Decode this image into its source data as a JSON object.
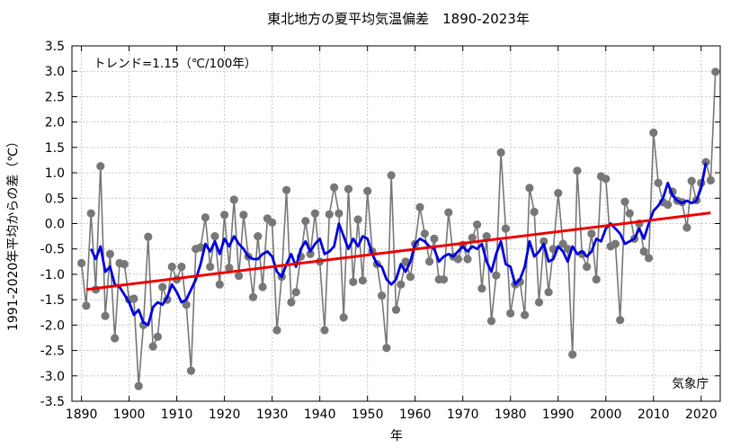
{
  "chart_data": {
    "type": "line",
    "title": "東北地方の夏平均気温偏差　1890-2023年",
    "ylabel": "1991-2020年平均からの差（℃）",
    "xlabel": "年",
    "trend_label": "トレンド=1.15（℃/100年）",
    "credit": "気象庁",
    "xlim": [
      1888,
      2024
    ],
    "ylim": [
      -3.5,
      3.5
    ],
    "x_ticks": [
      1890,
      1900,
      1910,
      1920,
      1930,
      1940,
      1950,
      1960,
      1970,
      1980,
      1990,
      2000,
      2010,
      2020
    ],
    "x_tick_labels": [
      "1890",
      "1900",
      "1910",
      "1920",
      "1930",
      "1940",
      "1950",
      "1960",
      "1970",
      "1980",
      "1990",
      "2000",
      "2010",
      "2020"
    ],
    "y_ticks": [
      3.5,
      3.0,
      2.5,
      2.0,
      1.5,
      1.0,
      0.5,
      0.0,
      -0.5,
      -1.0,
      -1.5,
      -2.0,
      -2.5,
      -3.0,
      -3.5
    ],
    "y_tick_labels": [
      "3.5",
      "3.0",
      "2.5",
      "2.0",
      "1.5",
      "1.0",
      "0.5",
      "0.0",
      "-0.5",
      "-1.0",
      "-1.5",
      "-2.0",
      "-2.5",
      "-3.0",
      "-3.5"
    ],
    "grid": true,
    "colors": {
      "annual": "#777777",
      "moving_average": "#0000dd",
      "trend": "#ee0000"
    },
    "annual": {
      "x": [
        1890,
        1891,
        1892,
        1893,
        1894,
        1895,
        1896,
        1897,
        1898,
        1899,
        1900,
        1901,
        1902,
        1903,
        1904,
        1905,
        1906,
        1907,
        1908,
        1909,
        1910,
        1911,
        1912,
        1913,
        1914,
        1915,
        1916,
        1917,
        1918,
        1919,
        1920,
        1921,
        1922,
        1923,
        1924,
        1925,
        1926,
        1927,
        1928,
        1929,
        1930,
        1931,
        1932,
        1933,
        1934,
        1935,
        1936,
        1937,
        1938,
        1939,
        1940,
        1941,
        1942,
        1943,
        1944,
        1945,
        1946,
        1947,
        1948,
        1949,
        1950,
        1951,
        1952,
        1953,
        1954,
        1955,
        1956,
        1957,
        1958,
        1959,
        1960,
        1961,
        1962,
        1963,
        1964,
        1965,
        1966,
        1967,
        1968,
        1969,
        1970,
        1971,
        1972,
        1973,
        1974,
        1975,
        1976,
        1977,
        1978,
        1979,
        1980,
        1981,
        1982,
        1983,
        1984,
        1985,
        1986,
        1987,
        1988,
        1989,
        1990,
        1991,
        1992,
        1993,
        1994,
        1995,
        1996,
        1997,
        1998,
        1999,
        2000,
        2001,
        2002,
        2003,
        2004,
        2005,
        2006,
        2007,
        2008,
        2009,
        2010,
        2011,
        2012,
        2013,
        2014,
        2015,
        2016,
        2017,
        2018,
        2019,
        2020,
        2021,
        2022,
        2023
      ],
      "y": [
        -0.78,
        -1.62,
        0.2,
        -1.3,
        1.13,
        -1.82,
        -0.6,
        -2.26,
        -0.78,
        -0.8,
        -1.5,
        -1.48,
        -3.2,
        -2.0,
        -0.26,
        -2.42,
        -2.23,
        -1.25,
        -1.5,
        -0.85,
        -1.1,
        -0.85,
        -1.6,
        -2.9,
        -0.5,
        -0.47,
        0.12,
        -0.85,
        -0.25,
        -1.2,
        0.17,
        -0.87,
        0.47,
        -1.03,
        0.17,
        -0.65,
        -1.45,
        -0.25,
        -1.25,
        0.1,
        0.02,
        -2.1,
        -1.05,
        0.66,
        -1.55,
        -1.35,
        -0.65,
        0.05,
        -0.6,
        0.2,
        -0.75,
        -2.1,
        0.18,
        0.71,
        0.2,
        -1.85,
        0.68,
        -1.15,
        0.08,
        -1.12,
        0.64,
        -0.55,
        -0.8,
        -1.42,
        -2.45,
        0.95,
        -1.7,
        -1.2,
        -0.75,
        -1.05,
        -0.4,
        0.32,
        -0.2,
        -0.75,
        -0.3,
        -1.1,
        -1.1,
        0.22,
        -0.65,
        -0.7,
        -0.42,
        -0.7,
        -0.28,
        -0.02,
        -1.28,
        -0.25,
        -1.92,
        -1.02,
        1.4,
        -0.1,
        -1.77,
        -1.2,
        -1.15,
        -1.8,
        0.7,
        0.23,
        -1.55,
        -0.35,
        -1.35,
        -0.5,
        0.6,
        -0.4,
        -0.5,
        -2.58,
        1.04,
        -0.6,
        -0.85,
        -0.2,
        -1.1,
        0.93,
        0.88,
        -0.45,
        -0.4,
        -1.9,
        0.43,
        0.2,
        -0.3,
        0.0,
        -0.55,
        -0.68,
        1.79,
        0.8,
        0.42,
        0.37,
        0.63,
        0.45,
        0.42,
        -0.08,
        0.84,
        0.46,
        0.8,
        1.21,
        0.85,
        2.99
      ]
    },
    "moving_average": {
      "x": [
        1892,
        1893,
        1894,
        1895,
        1896,
        1897,
        1898,
        1899,
        1900,
        1901,
        1902,
        1903,
        1904,
        1905,
        1906,
        1907,
        1908,
        1909,
        1910,
        1911,
        1912,
        1913,
        1914,
        1915,
        1916,
        1917,
        1918,
        1919,
        1920,
        1921,
        1922,
        1923,
        1924,
        1925,
        1926,
        1927,
        1928,
        1929,
        1930,
        1931,
        1932,
        1933,
        1934,
        1935,
        1936,
        1937,
        1938,
        1939,
        1940,
        1941,
        1942,
        1943,
        1944,
        1945,
        1946,
        1947,
        1948,
        1949,
        1950,
        1951,
        1952,
        1953,
        1954,
        1955,
        1956,
        1957,
        1958,
        1959,
        1960,
        1961,
        1962,
        1963,
        1964,
        1965,
        1966,
        1967,
        1968,
        1969,
        1970,
        1971,
        1972,
        1973,
        1974,
        1975,
        1976,
        1977,
        1978,
        1979,
        1980,
        1981,
        1982,
        1983,
        1984,
        1985,
        1986,
        1987,
        1988,
        1989,
        1990,
        1991,
        1992,
        1993,
        1994,
        1995,
        1996,
        1997,
        1998,
        1999,
        2000,
        2001,
        2002,
        2003,
        2004,
        2005,
        2006,
        2007,
        2008,
        2009,
        2010,
        2011,
        2012,
        2013,
        2014,
        2015,
        2016,
        2017,
        2018,
        2019,
        2020,
        2021
      ],
      "y": [
        -0.5,
        -0.7,
        -0.45,
        -0.95,
        -0.85,
        -1.2,
        -1.25,
        -1.4,
        -1.55,
        -1.8,
        -1.7,
        -1.95,
        -2.0,
        -1.65,
        -1.55,
        -1.6,
        -1.45,
        -1.2,
        -1.35,
        -1.55,
        -1.5,
        -1.3,
        -1.1,
        -0.8,
        -0.4,
        -0.55,
        -0.35,
        -0.6,
        -0.3,
        -0.45,
        -0.25,
        -0.4,
        -0.5,
        -0.65,
        -0.7,
        -0.7,
        -0.6,
        -0.55,
        -0.65,
        -0.95,
        -1.05,
        -0.8,
        -0.6,
        -0.85,
        -0.5,
        -0.35,
        -0.55,
        -0.4,
        -0.3,
        -0.6,
        -0.55,
        -0.45,
        0.0,
        -0.25,
        -0.5,
        -0.3,
        -0.45,
        -0.25,
        -0.3,
        -0.6,
        -0.8,
        -0.85,
        -1.1,
        -1.2,
        -1.1,
        -0.8,
        -0.95,
        -0.75,
        -0.4,
        -0.3,
        -0.35,
        -0.45,
        -0.5,
        -0.75,
        -0.65,
        -0.6,
        -0.65,
        -0.55,
        -0.45,
        -0.55,
        -0.45,
        -0.5,
        -0.4,
        -0.75,
        -0.95,
        -0.6,
        -0.35,
        -0.8,
        -0.85,
        -1.2,
        -1.1,
        -0.85,
        -0.35,
        -0.65,
        -0.55,
        -0.4,
        -0.75,
        -0.7,
        -0.45,
        -0.55,
        -0.75,
        -0.45,
        -0.6,
        -0.55,
        -0.65,
        -0.55,
        -0.3,
        -0.35,
        -0.1,
        0.0,
        -0.1,
        -0.2,
        -0.4,
        -0.35,
        -0.3,
        -0.1,
        -0.3,
        0.0,
        0.25,
        0.35,
        0.5,
        0.8,
        0.55,
        0.45,
        0.4,
        0.45,
        0.4,
        0.45,
        0.7,
        1.2
      ]
    },
    "trend": {
      "x": [
        1891,
        2022
      ],
      "y": [
        -1.3,
        0.21
      ]
    }
  }
}
